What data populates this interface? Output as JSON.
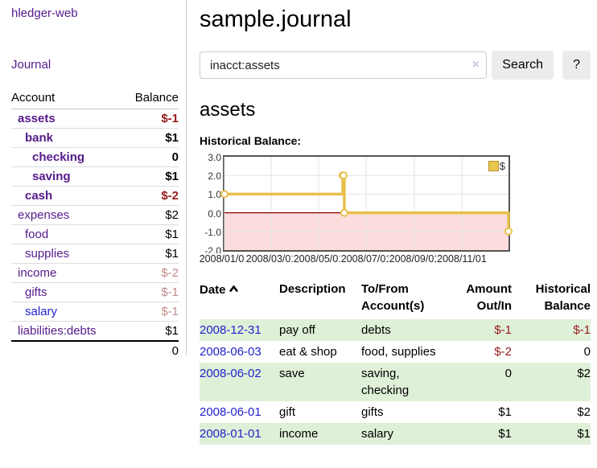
{
  "app": {
    "title": "hledger-web"
  },
  "sidebar": {
    "journal_label": "Journal",
    "accounts": {
      "headers": {
        "account": "Account",
        "balance": "Balance"
      },
      "rows": [
        {
          "account": "assets",
          "balance": "$-1",
          "level": 1,
          "bold": true,
          "balance_style": "negative",
          "link_style": "purple"
        },
        {
          "account": "bank",
          "balance": "$1",
          "level": 2,
          "bold": true,
          "balance_style": "normal",
          "link_style": "purple"
        },
        {
          "account": "checking",
          "balance": "0",
          "level": 3,
          "bold": true,
          "balance_style": "normal",
          "link_style": "purple"
        },
        {
          "account": "saving",
          "balance": "$1",
          "level": 3,
          "bold": true,
          "balance_style": "normal",
          "link_style": "purple"
        },
        {
          "account": "cash",
          "balance": "$-2",
          "level": 2,
          "bold": true,
          "balance_style": "negative",
          "link_style": "purple"
        },
        {
          "account": "expenses",
          "balance": "$2",
          "level": 1,
          "bold": false,
          "balance_style": "normal",
          "link_style": "purple"
        },
        {
          "account": "food",
          "balance": "$1",
          "level": 2,
          "bold": false,
          "balance_style": "normal",
          "link_style": "purple"
        },
        {
          "account": "supplies",
          "balance": "$1",
          "level": 2,
          "bold": false,
          "balance_style": "normal",
          "link_style": "purple"
        },
        {
          "account": "income",
          "balance": "$-2",
          "level": 1,
          "bold": false,
          "balance_style": "negative-muted",
          "link_style": "purple"
        },
        {
          "account": "gifts",
          "balance": "$-1",
          "level": 2,
          "bold": false,
          "balance_style": "negative-muted",
          "link_style": "purple"
        },
        {
          "account": "salary",
          "balance": "$-1",
          "level": 2,
          "bold": false,
          "balance_style": "negative-muted",
          "link_style": "blue"
        },
        {
          "account": "liabilities:debts",
          "balance": "$1",
          "level": 1,
          "bold": false,
          "balance_style": "normal",
          "link_style": "purple"
        }
      ],
      "total": "0"
    }
  },
  "main": {
    "title": "sample.journal",
    "search": {
      "value": "inacct:assets",
      "clear_icon": "×",
      "button_label": "Search",
      "help_label": "?"
    },
    "account_heading": "assets",
    "chart_heading": "Historical Balance:"
  },
  "chart_data": {
    "type": "line",
    "step": true,
    "title": "Historical Balance of assets",
    "legend": [
      {
        "name": "$",
        "color": "#eac84f"
      }
    ],
    "x": [
      "2008-01-01",
      "2008-06-01",
      "2008-06-02",
      "2008-06-03",
      "2008-12-31"
    ],
    "values": [
      1,
      2,
      2,
      0,
      -1
    ],
    "ylim": [
      -2,
      3
    ],
    "yticks": [
      3,
      2,
      1,
      0,
      -1,
      -2
    ],
    "ytick_labels": [
      "3.0",
      "2.0",
      "1.0",
      "0.0",
      "-1.0",
      "-2.0"
    ],
    "xtick_dates": [
      "2008-01-01",
      "2008-03-01",
      "2008-05-01",
      "2008-07-01",
      "2008-09-01",
      "2008-11-01"
    ],
    "xtick_labels": [
      "2008/01/01",
      "2008/03/01",
      "2008/05/01",
      "2008/07/01",
      "2008/09/01",
      "2008/11/01"
    ],
    "grid": true,
    "legend_position": "top-right",
    "colors": {
      "line": "#e7c04b",
      "negative_region": "#fcdcdc",
      "zero_line": "#900000",
      "gridline": "#e3e3e3"
    }
  },
  "transactions": {
    "headers": {
      "date": "Date",
      "sort_icon": "chevron-up",
      "description": "Description",
      "accounts": "To/From Account(s)",
      "amount": "Amount Out/In",
      "balance": "Historical Balance"
    },
    "rows": [
      {
        "date": "2008-12-31",
        "description": "pay off",
        "accounts": "debts",
        "amount": "$-1",
        "amount_style": "negative",
        "balance": "$-1",
        "balance_style": "negative",
        "highlight": true
      },
      {
        "date": "2008-06-03",
        "description": "eat & shop",
        "accounts": "food, supplies",
        "amount": "$-2",
        "amount_style": "negative",
        "balance": "0",
        "balance_style": "normal",
        "highlight": false
      },
      {
        "date": "2008-06-02",
        "description": "save",
        "accounts": "saving, checking",
        "amount": "0",
        "amount_style": "normal",
        "balance": "$2",
        "balance_style": "normal",
        "highlight": true
      },
      {
        "date": "2008-06-01",
        "description": "gift",
        "accounts": "gifts",
        "amount": "$1",
        "amount_style": "normal",
        "balance": "$2",
        "balance_style": "normal",
        "highlight": false
      },
      {
        "date": "2008-01-01",
        "description": "income",
        "accounts": "salary",
        "amount": "$1",
        "amount_style": "normal",
        "balance": "$1",
        "balance_style": "normal",
        "highlight": true
      }
    ]
  },
  "colors": {
    "purple_link": "#551a8b",
    "blue_link": "#2222cc",
    "negative": "#971a1a",
    "negative_muted": "#be8a8a",
    "row_highlight": "#dff0d8"
  }
}
